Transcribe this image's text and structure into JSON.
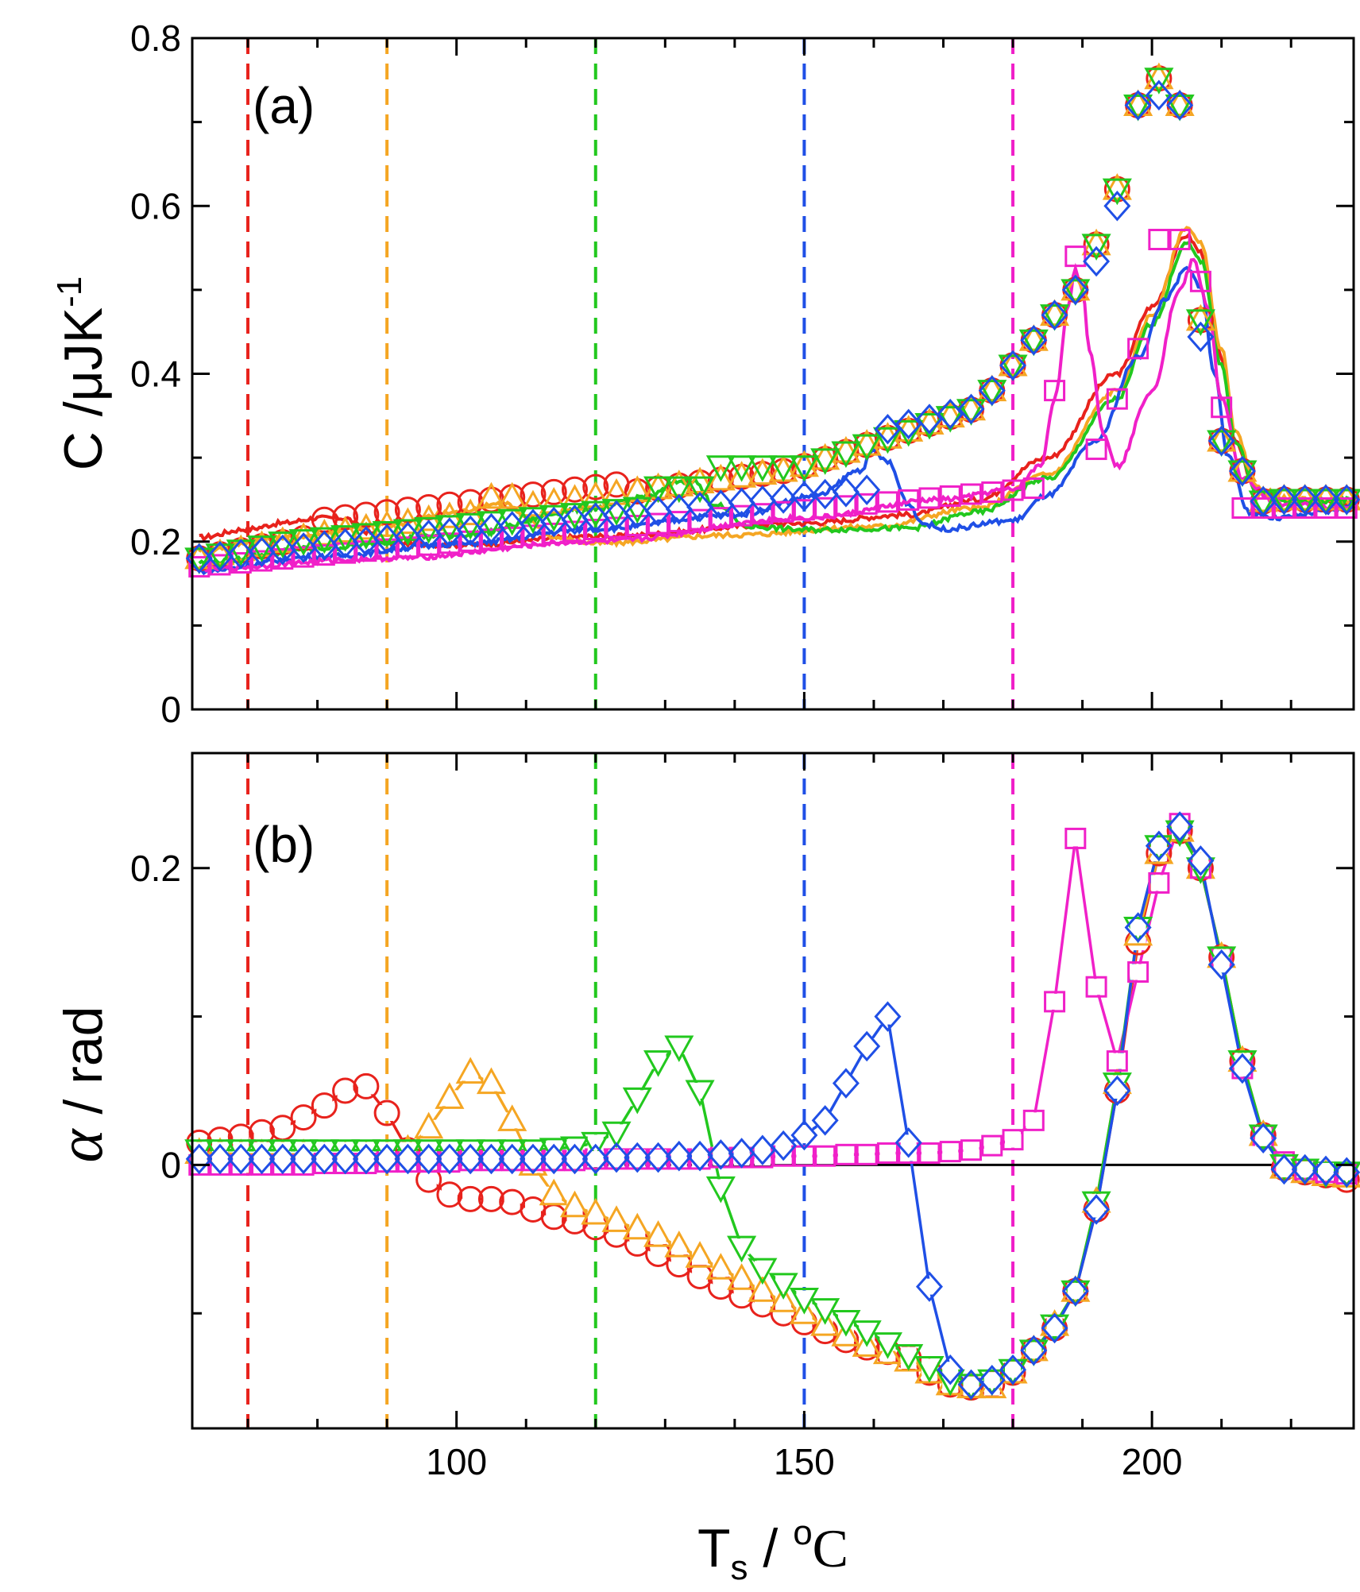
{
  "figure": {
    "xlabel_main": "T",
    "xlabel_sub": "s",
    "xlabel_sep": " / ",
    "xlabel_sup": "o",
    "xlabel_unit": "C",
    "panel_a_ylabel": "C /μJK",
    "panel_a_ylabel_sup": "-1",
    "panel_b_ylabel_symbol": "α",
    "panel_b_ylabel_unit": " / rad",
    "panel_a_label": "(a)",
    "panel_b_label": "(b)"
  },
  "colors": {
    "red": "#e8221c",
    "orange": "#f5a623",
    "green": "#22c81e",
    "blue": "#1f4fe6",
    "magenta": "#f020c8",
    "black": "#000000"
  },
  "chart_data": [
    {
      "type": "scatter",
      "panel": "a",
      "title": "(a)",
      "xlabel": "Ts / oC",
      "ylabel": "C /μJK-1",
      "xlim": [
        62,
        229
      ],
      "ylim": [
        0,
        0.8
      ],
      "yticks": [
        0,
        0.2,
        0.4,
        0.6,
        0.8
      ],
      "ytick_labels": [
        "0",
        "0.2",
        "0.4",
        "0.6",
        "0.8"
      ],
      "xticks": [
        100,
        150,
        200
      ],
      "vlines": [
        {
          "x": 70,
          "color": "red"
        },
        {
          "x": 90,
          "color": "orange"
        },
        {
          "x": 120,
          "color": "green"
        },
        {
          "x": 150,
          "color": "blue"
        },
        {
          "x": 180,
          "color": "magenta"
        }
      ],
      "marker_series": [
        {
          "name": "red circles",
          "color": "red",
          "marker": "circle",
          "x_start": 63,
          "x_step": 3,
          "n": 56
        },
        {
          "name": "orange triangles",
          "color": "orange",
          "marker": "triangle-up",
          "x_start": 63,
          "x_step": 3,
          "n": 56
        },
        {
          "name": "magenta squares",
          "color": "magenta",
          "marker": "square",
          "x_start": 63,
          "x_step": 3,
          "n": 56
        },
        {
          "name": "green triangles",
          "color": "green",
          "marker": "triangle-down",
          "x_start": 63,
          "x_step": 3,
          "n": 56
        },
        {
          "name": "blue diamonds",
          "color": "blue",
          "marker": "diamond",
          "x_start": 63,
          "x_step": 3,
          "n": 56
        }
      ],
      "line_series": [
        {
          "name": "red line",
          "color": "red",
          "points": [
            [
              63,
              0.205
            ],
            [
              70,
              0.215
            ],
            [
              75,
              0.222
            ],
            [
              80,
              0.228
            ],
            [
              84,
              0.228
            ],
            [
              87,
              0.212
            ],
            [
              90,
              0.198
            ],
            [
              100,
              0.196
            ],
            [
              120,
              0.206
            ],
            [
              150,
              0.222
            ],
            [
              165,
              0.232
            ],
            [
              175,
              0.25
            ],
            [
              185,
              0.3
            ],
            [
              195,
              0.4
            ],
            [
              200,
              0.48
            ],
            [
              205,
              0.565
            ],
            [
              207,
              0.545
            ],
            [
              210,
              0.42
            ],
            [
              212,
              0.32
            ],
            [
              215,
              0.26
            ],
            [
              220,
              0.248
            ],
            [
              229,
              0.245
            ]
          ]
        },
        {
          "name": "orange line",
          "color": "orange",
          "points": [
            [
              63,
              0.19
            ],
            [
              75,
              0.205
            ],
            [
              90,
              0.22
            ],
            [
              100,
              0.235
            ],
            [
              105,
              0.245
            ],
            [
              107,
              0.246
            ],
            [
              110,
              0.228
            ],
            [
              114,
              0.205
            ],
            [
              120,
              0.198
            ],
            [
              140,
              0.208
            ],
            [
              160,
              0.218
            ],
            [
              175,
              0.24
            ],
            [
              185,
              0.28
            ],
            [
              195,
              0.38
            ],
            [
              200,
              0.47
            ],
            [
              205,
              0.575
            ],
            [
              207,
              0.555
            ],
            [
              210,
              0.43
            ],
            [
              212,
              0.33
            ],
            [
              215,
              0.265
            ],
            [
              220,
              0.25
            ],
            [
              229,
              0.247
            ]
          ]
        },
        {
          "name": "green line",
          "color": "green",
          "points": [
            [
              63,
              0.175
            ],
            [
              80,
              0.192
            ],
            [
              100,
              0.208
            ],
            [
              120,
              0.24
            ],
            [
              128,
              0.255
            ],
            [
              132,
              0.272
            ],
            [
              134,
              0.273
            ],
            [
              137,
              0.245
            ],
            [
              142,
              0.218
            ],
            [
              150,
              0.214
            ],
            [
              165,
              0.216
            ],
            [
              175,
              0.235
            ],
            [
              185,
              0.275
            ],
            [
              195,
              0.37
            ],
            [
              200,
              0.46
            ],
            [
              205,
              0.555
            ],
            [
              207,
              0.535
            ],
            [
              210,
              0.41
            ],
            [
              212,
              0.32
            ],
            [
              215,
              0.26
            ],
            [
              220,
              0.248
            ],
            [
              229,
              0.25
            ]
          ]
        },
        {
          "name": "blue line",
          "color": "blue",
          "points": [
            [
              63,
              0.165
            ],
            [
              80,
              0.182
            ],
            [
              100,
              0.197
            ],
            [
              120,
              0.215
            ],
            [
              140,
              0.232
            ],
            [
              152,
              0.255
            ],
            [
              158,
              0.285
            ],
            [
              160,
              0.307
            ],
            [
              162,
              0.295
            ],
            [
              165,
              0.245
            ],
            [
              167,
              0.222
            ],
            [
              170,
              0.215
            ],
            [
              180,
              0.225
            ],
            [
              185,
              0.255
            ],
            [
              192,
              0.32
            ],
            [
              198,
              0.42
            ],
            [
              202,
              0.49
            ],
            [
              205,
              0.525
            ],
            [
              207,
              0.505
            ],
            [
              209,
              0.4
            ],
            [
              211,
              0.3
            ],
            [
              214,
              0.235
            ],
            [
              218,
              0.228
            ],
            [
              225,
              0.235
            ],
            [
              229,
              0.245
            ]
          ]
        },
        {
          "name": "magenta line",
          "color": "magenta",
          "points": [
            [
              63,
              0.168
            ],
            [
              90,
              0.18
            ],
            [
              120,
              0.2
            ],
            [
              150,
              0.228
            ],
            [
              170,
              0.25
            ],
            [
              180,
              0.262
            ],
            [
              184,
              0.29
            ],
            [
              186,
              0.37
            ],
            [
              188,
              0.48
            ],
            [
              189,
              0.525
            ],
            [
              190,
              0.5
            ],
            [
              191,
              0.43
            ],
            [
              193,
              0.33
            ],
            [
              195,
              0.29
            ],
            [
              200,
              0.38
            ],
            [
              204,
              0.5
            ],
            [
              206,
              0.535
            ],
            [
              208,
              0.48
            ],
            [
              210,
              0.37
            ],
            [
              213,
              0.275
            ],
            [
              218,
              0.245
            ],
            [
              229,
              0.24
            ]
          ]
        }
      ]
    },
    {
      "type": "line",
      "panel": "b",
      "title": "(b)",
      "xlabel": "Ts / oC",
      "ylabel": "α / rad",
      "xlim": [
        62,
        229
      ],
      "ylim": [
        -0.1775,
        0.2775
      ],
      "yticks": [
        0,
        0.2
      ],
      "ytick_labels": [
        "0",
        "0.2"
      ],
      "xticks": [
        100,
        150,
        200
      ],
      "xtick_labels": [
        "100",
        "150",
        "200"
      ],
      "zero_line": true,
      "vlines": [
        {
          "x": 70,
          "color": "red"
        },
        {
          "x": 90,
          "color": "orange"
        },
        {
          "x": 120,
          "color": "green"
        },
        {
          "x": 150,
          "color": "blue"
        },
        {
          "x": 180,
          "color": "magenta"
        }
      ],
      "series": [
        {
          "name": "red circles",
          "color": "red",
          "marker": "circle",
          "x_start": 63,
          "x_step": 3,
          "values": [
            0.015,
            0.017,
            0.019,
            0.022,
            0.025,
            0.032,
            0.04,
            0.05,
            0.053,
            0.035,
            0.01,
            -0.01,
            -0.02,
            -0.023,
            -0.023,
            -0.025,
            -0.03,
            -0.035,
            -0.038,
            -0.042,
            -0.047,
            -0.053,
            -0.06,
            -0.067,
            -0.075,
            -0.082,
            -0.088,
            -0.094,
            -0.1,
            -0.106,
            -0.112,
            -0.118,
            -0.123,
            -0.126,
            -0.13,
            -0.14,
            -0.148,
            -0.15,
            -0.148,
            -0.14,
            -0.125,
            -0.11,
            -0.085,
            -0.03,
            0.05,
            0.15,
            0.21,
            0.225,
            0.2,
            0.14,
            0.07,
            0.02,
            -0.002,
            -0.005,
            -0.007,
            -0.01
          ]
        },
        {
          "name": "orange triangles",
          "color": "orange",
          "marker": "triangle-up",
          "x_start": 63,
          "x_step": 3,
          "values": [
            0.008,
            0.008,
            0.007,
            0.007,
            0.007,
            0.007,
            0.006,
            0.006,
            0.006,
            0.006,
            0.01,
            0.025,
            0.045,
            0.062,
            0.055,
            0.03,
            0.0,
            -0.02,
            -0.028,
            -0.033,
            -0.038,
            -0.043,
            -0.048,
            -0.055,
            -0.062,
            -0.07,
            -0.077,
            -0.085,
            -0.092,
            -0.1,
            -0.108,
            -0.115,
            -0.122,
            -0.127,
            -0.132,
            -0.14,
            -0.148,
            -0.15,
            -0.15,
            -0.14,
            -0.125,
            -0.108,
            -0.085,
            -0.025,
            0.055,
            0.155,
            0.21,
            0.225,
            0.2,
            0.14,
            0.07,
            0.02,
            -0.002,
            -0.005,
            -0.007,
            -0.008
          ]
        },
        {
          "name": "magenta squares",
          "color": "magenta",
          "marker": "square",
          "x_start": 63,
          "x_step": 3,
          "values": [
            0.0,
            0.0,
            0.0,
            0.0,
            0.0,
            0.0,
            0.001,
            0.001,
            0.001,
            0.002,
            0.002,
            0.002,
            0.002,
            0.003,
            0.003,
            0.003,
            0.003,
            0.003,
            0.003,
            0.004,
            0.004,
            0.004,
            0.004,
            0.004,
            0.004,
            0.005,
            0.005,
            0.005,
            0.006,
            0.006,
            0.006,
            0.007,
            0.007,
            0.008,
            0.008,
            0.008,
            0.009,
            0.01,
            0.013,
            0.017,
            0.03,
            0.11,
            0.22,
            0.12,
            0.07,
            0.13,
            0.19,
            0.23,
            0.2,
            0.14,
            0.065,
            0.02,
            0.002,
            -0.003,
            -0.005,
            -0.006
          ]
        },
        {
          "name": "green triangles",
          "color": "green",
          "marker": "triangle-down",
          "x_start": 63,
          "x_step": 3,
          "values": [
            0.01,
            0.01,
            0.01,
            0.01,
            0.01,
            0.01,
            0.01,
            0.01,
            0.01,
            0.01,
            0.01,
            0.01,
            0.01,
            0.01,
            0.01,
            0.01,
            0.01,
            0.011,
            0.012,
            0.015,
            0.022,
            0.045,
            0.07,
            0.08,
            0.05,
            -0.015,
            -0.055,
            -0.07,
            -0.08,
            -0.09,
            -0.097,
            -0.105,
            -0.112,
            -0.12,
            -0.128,
            -0.136,
            -0.145,
            -0.148,
            -0.145,
            -0.138,
            -0.125,
            -0.108,
            -0.085,
            -0.025,
            0.055,
            0.16,
            0.215,
            0.225,
            0.2,
            0.14,
            0.07,
            0.02,
            0.0,
            -0.003,
            -0.005,
            -0.005
          ]
        },
        {
          "name": "blue diamonds",
          "color": "blue",
          "marker": "diamond",
          "x_start": 63,
          "x_step": 3,
          "values": [
            0.004,
            0.004,
            0.004,
            0.004,
            0.004,
            0.004,
            0.004,
            0.004,
            0.004,
            0.004,
            0.004,
            0.004,
            0.004,
            0.004,
            0.004,
            0.004,
            0.004,
            0.004,
            0.004,
            0.004,
            0.005,
            0.005,
            0.005,
            0.006,
            0.006,
            0.007,
            0.008,
            0.01,
            0.013,
            0.02,
            0.03,
            0.055,
            0.08,
            0.1,
            0.015,
            -0.082,
            -0.138,
            -0.148,
            -0.145,
            -0.138,
            -0.125,
            -0.11,
            -0.085,
            -0.03,
            0.05,
            0.16,
            0.215,
            0.228,
            0.205,
            0.135,
            0.065,
            0.018,
            -0.003,
            -0.003,
            -0.004,
            -0.005
          ]
        }
      ]
    }
  ]
}
